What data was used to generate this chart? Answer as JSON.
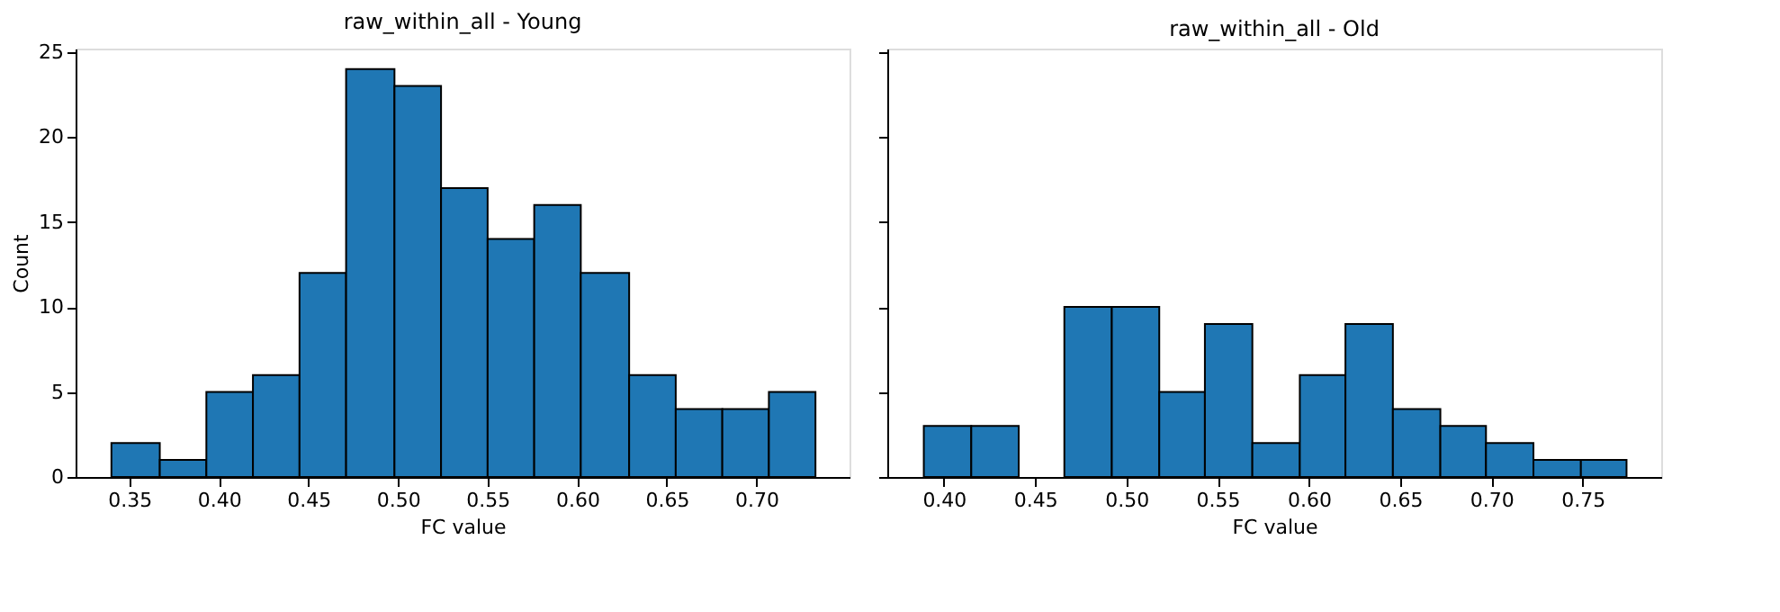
{
  "chart_data": [
    {
      "type": "histogram",
      "title": "raw_within_all - Young",
      "xlabel": "FC value",
      "ylabel": "Count",
      "color": "#1f77b4",
      "bins": [
        0.34,
        0.367,
        0.393,
        0.419,
        0.445,
        0.471,
        0.498,
        0.524,
        0.55,
        0.576,
        0.602,
        0.629,
        0.655,
        0.681,
        0.707,
        0.733
      ],
      "values": [
        2,
        1,
        5,
        6,
        12,
        24,
        23,
        17,
        14,
        16,
        12,
        6,
        4,
        4,
        5
      ],
      "xlim": [
        0.32,
        0.752
      ],
      "xticks": [
        0.35,
        {
          "value": 0.4,
          "label": "0.40"
        },
        0.45,
        {
          "value": 0.5,
          "label": "0.50"
        },
        0.55,
        {
          "value": 0.6,
          "label": "0.60"
        },
        0.65,
        {
          "value": 0.7,
          "label": "0.70"
        }
      ],
      "ylim": [
        0,
        25.2
      ],
      "yticks": [
        0,
        5,
        10,
        15,
        20,
        25
      ]
    },
    {
      "type": "histogram",
      "title": "raw_within_all - Old",
      "xlabel": "FC value",
      "color": "#1f77b4",
      "bins": [
        0.389,
        0.415,
        0.441,
        0.466,
        0.492,
        0.518,
        0.543,
        0.569,
        0.595,
        0.62,
        0.646,
        0.672,
        0.697,
        0.723,
        0.749,
        0.774
      ],
      "values": [
        3,
        3,
        0,
        10,
        10,
        5,
        9,
        2,
        6,
        9,
        4,
        3,
        2,
        1,
        1
      ],
      "xlim": [
        0.369,
        0.793
      ],
      "xticks": [
        {
          "value": 0.4,
          "label": "0.40"
        },
        0.45,
        {
          "value": 0.5,
          "label": "0.50"
        },
        0.55,
        {
          "value": 0.6,
          "label": "0.60"
        },
        0.65,
        {
          "value": 0.7,
          "label": "0.70"
        },
        0.75
      ],
      "ylim": [
        0,
        25.2
      ],
      "yticks": [
        0,
        5,
        10,
        15,
        20,
        25
      ],
      "tick_labels": "x"
    }
  ]
}
